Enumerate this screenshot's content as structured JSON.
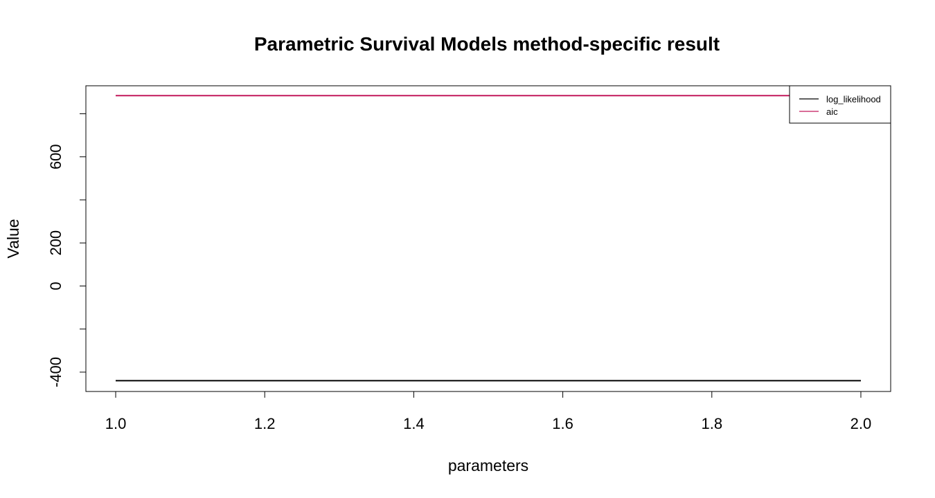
{
  "chart_data": {
    "type": "line",
    "title": "Parametric Survival Models method-specific result",
    "xlabel": "parameters",
    "ylabel": "Value",
    "x": [
      1.0,
      2.0
    ],
    "xlim": [
      0.96,
      2.04
    ],
    "ylim": [
      -490,
      930
    ],
    "xticks": [
      1.0,
      1.2,
      1.4,
      1.6,
      1.8,
      2.0
    ],
    "xtick_labels": [
      "1.0",
      "1.2",
      "1.4",
      "1.6",
      "1.8",
      "2.0"
    ],
    "yticks": [
      -400,
      -200,
      0,
      200,
      400,
      600,
      800
    ],
    "ytick_labels": [
      "-400",
      "",
      "0",
      "200",
      "",
      "600",
      ""
    ],
    "legend_position": "top-right",
    "grid": false,
    "series": [
      {
        "name": "log_likelihood",
        "color": "#000000",
        "values": [
          -440,
          -440
        ]
      },
      {
        "name": "aic",
        "color": "#c2185b",
        "values": [
          884,
          884
        ]
      }
    ]
  }
}
